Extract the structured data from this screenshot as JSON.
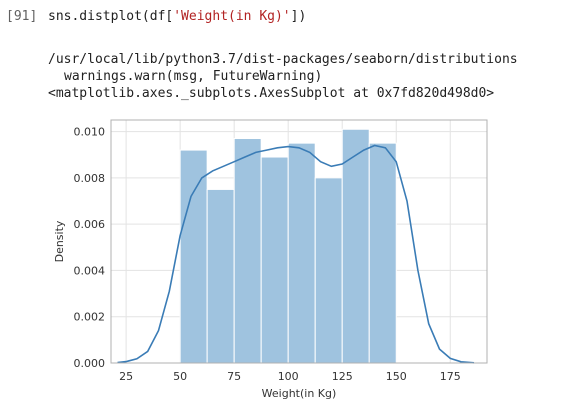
{
  "cell": {
    "prompt": "[91]",
    "code_prefix": "sns.distplot(df[",
    "code_string": "'Weight(in Kg)'",
    "code_suffix": "])"
  },
  "output": {
    "line1": "/usr/local/lib/python3.7/dist-packages/seaborn/distributions",
    "line2": "warnings.warn(msg, FutureWarning)",
    "line3": "<matplotlib.axes._subplots.AxesSubplot at 0x7fd820d498d0>"
  },
  "chart_data": {
    "type": "bar",
    "xlabel": "Weight(in Kg)",
    "ylabel": "Density",
    "xlim": [
      18,
      192
    ],
    "ylim": [
      0,
      0.0105
    ],
    "xticks": [
      25,
      50,
      75,
      100,
      125,
      150,
      175
    ],
    "yticks": [
      0.0,
      0.002,
      0.004,
      0.006,
      0.008,
      0.01
    ],
    "ytick_labels": [
      "0.000",
      "0.002",
      "0.004",
      "0.006",
      "0.008",
      "0.010"
    ],
    "grid": true,
    "bins": [
      {
        "x0": 50,
        "x1": 62.5,
        "density": 0.0092
      },
      {
        "x0": 62.5,
        "x1": 75,
        "density": 0.0075
      },
      {
        "x0": 75,
        "x1": 87.5,
        "density": 0.0097
      },
      {
        "x0": 87.5,
        "x1": 100,
        "density": 0.0089
      },
      {
        "x0": 100,
        "x1": 112.5,
        "density": 0.0095
      },
      {
        "x0": 112.5,
        "x1": 125,
        "density": 0.008
      },
      {
        "x0": 125,
        "x1": 137.5,
        "density": 0.0101
      },
      {
        "x0": 137.5,
        "x1": 150,
        "density": 0.0095
      }
    ],
    "kde": [
      [
        21,
        2e-05
      ],
      [
        25,
        6e-05
      ],
      [
        30,
        0.00018
      ],
      [
        35,
        0.0005
      ],
      [
        40,
        0.0014
      ],
      [
        45,
        0.0031
      ],
      [
        50,
        0.0055
      ],
      [
        55,
        0.0072
      ],
      [
        60,
        0.008
      ],
      [
        65,
        0.0083
      ],
      [
        70,
        0.0085
      ],
      [
        75,
        0.0087
      ],
      [
        80,
        0.0089
      ],
      [
        85,
        0.0091
      ],
      [
        90,
        0.0092
      ],
      [
        95,
        0.0093
      ],
      [
        100,
        0.00935
      ],
      [
        105,
        0.0093
      ],
      [
        110,
        0.0091
      ],
      [
        115,
        0.0087
      ],
      [
        120,
        0.0085
      ],
      [
        125,
        0.0086
      ],
      [
        130,
        0.0089
      ],
      [
        135,
        0.0092
      ],
      [
        140,
        0.0094
      ],
      [
        145,
        0.0093
      ],
      [
        150,
        0.0087
      ],
      [
        155,
        0.007
      ],
      [
        160,
        0.004
      ],
      [
        165,
        0.0017
      ],
      [
        170,
        0.0006
      ],
      [
        175,
        0.0002
      ],
      [
        180,
        5e-05
      ],
      [
        186,
        1e-05
      ]
    ],
    "colors": {
      "bar_fill": "#9fc3df",
      "bar_edge": "#ffffff",
      "kde_line": "#3a7cb6",
      "grid": "#e3e3e3",
      "frame": "#b0b0b0"
    }
  }
}
